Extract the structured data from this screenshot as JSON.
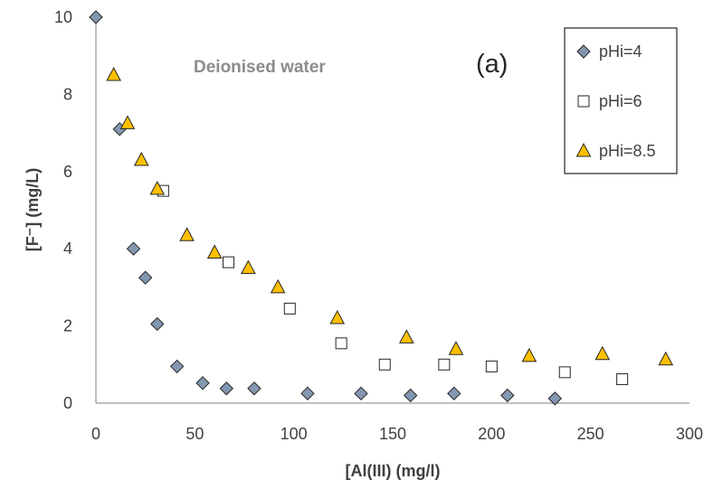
{
  "chart_data": {
    "type": "scatter",
    "xlabel": "[Al(III) (mg/l)",
    "ylabel": "[F⁻] (mg/L)",
    "xlim": [
      0,
      300
    ],
    "ylim": [
      0,
      10
    ],
    "x_ticks": [
      0,
      50,
      100,
      150,
      200,
      250,
      300
    ],
    "y_ticks": [
      0,
      2,
      4,
      6,
      8,
      10
    ],
    "grid": false,
    "legend_position": "top-right",
    "annotations": [
      "Deionised water",
      "(a)"
    ],
    "series": [
      {
        "name": "pHi=4",
        "marker": "diamond",
        "color": "#8497b0",
        "points": [
          [
            0,
            10
          ],
          [
            12,
            7.1
          ],
          [
            19,
            4.0
          ],
          [
            25,
            3.25
          ],
          [
            31,
            2.05
          ],
          [
            41,
            0.95
          ],
          [
            54,
            0.52
          ],
          [
            66,
            0.38
          ],
          [
            80,
            0.38
          ],
          [
            107,
            0.25
          ],
          [
            134,
            0.25
          ],
          [
            159,
            0.2
          ],
          [
            181,
            0.25
          ],
          [
            208,
            0.2
          ],
          [
            232,
            0.12
          ]
        ]
      },
      {
        "name": "pHi=6",
        "marker": "square",
        "color": "#ffffff",
        "points": [
          [
            34,
            5.5
          ],
          [
            67,
            3.65
          ],
          [
            98,
            2.45
          ],
          [
            124,
            1.55
          ],
          [
            146,
            1.0
          ],
          [
            176,
            1.0
          ],
          [
            200,
            0.95
          ],
          [
            237,
            0.8
          ],
          [
            266,
            0.62
          ]
        ]
      },
      {
        "name": "pHi=8.5",
        "marker": "triangle",
        "color": "#ffc000",
        "points": [
          [
            9,
            8.5
          ],
          [
            16,
            7.25
          ],
          [
            23,
            6.3
          ],
          [
            31,
            5.55
          ],
          [
            46,
            4.35
          ],
          [
            60,
            3.9
          ],
          [
            77,
            3.5
          ],
          [
            92,
            3.0
          ],
          [
            122,
            2.2
          ],
          [
            157,
            1.7
          ],
          [
            182,
            1.4
          ],
          [
            219,
            1.22
          ],
          [
            256,
            1.27
          ],
          [
            288,
            1.13
          ]
        ]
      }
    ]
  }
}
